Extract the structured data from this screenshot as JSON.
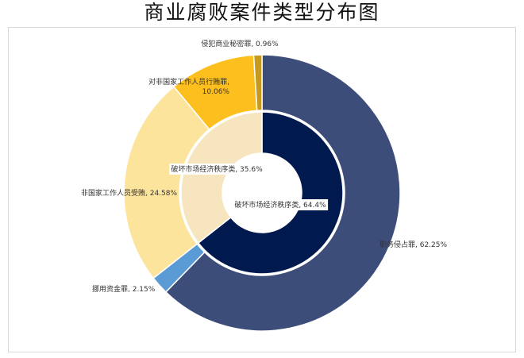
{
  "chart_data": {
    "type": "pie",
    "variant": "nested-donut",
    "title": "商业腐败案件类型分布图",
    "outer_ring": [
      {
        "name": "职务侵占罪",
        "value": 62.25,
        "label": "职务侵占罪, 62.25%",
        "color": "#3c4d7a"
      },
      {
        "name": "挪用资金罪",
        "value": 2.15,
        "label": "挪用资金罪, 2.15%",
        "color": "#5b9bd5"
      },
      {
        "name": "非国家工作人员受贿",
        "value": 24.58,
        "label": "非国家工作人员受贿, 24.58%",
        "color": "#fde49c"
      },
      {
        "name": "对非国家工作人员行贿罪",
        "value": 10.06,
        "label_lines": [
          "对非国家工作人员行贿罪,",
          "10.06%"
        ],
        "color": "#fcbf1e"
      },
      {
        "name": "侵犯商业秘密罪",
        "value": 0.96,
        "label": "侵犯商业秘密罪, 0.96%",
        "color": "#c59a1e"
      }
    ],
    "inner_ring": [
      {
        "name": "破坏市场经济秩序类",
        "value": 64.4,
        "label": "破坏市场经济秩序类, 64.4%",
        "color": "#001a4f"
      },
      {
        "name": "破坏市场经济秩序类",
        "value": 35.6,
        "label": "破坏市场经济秩序类, 35.6%",
        "color": "#f7e5c0"
      }
    ],
    "legend": "none",
    "start": "top",
    "direction": "clockwise"
  }
}
